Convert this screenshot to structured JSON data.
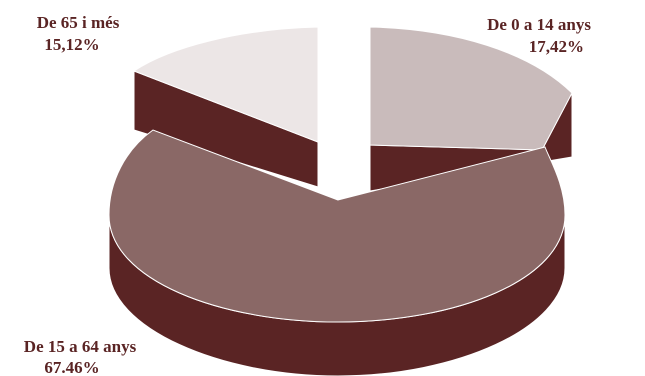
{
  "chart_data": {
    "type": "pie",
    "title": "",
    "slices": [
      {
        "name": "De 0 a 14 anys",
        "value_text": "17,42%",
        "value": 17.42,
        "color": "#c9bbbb"
      },
      {
        "name": "De 15 a 64 anys",
        "value_text": "67.46%",
        "value": 67.46,
        "color": "#8a6866"
      },
      {
        "name": "De 65 i més",
        "value_text": "15,12%",
        "value": 15.12,
        "color": "#ece6e6"
      }
    ],
    "side_color": "#5a2424",
    "exploded": true,
    "three_d": true
  }
}
